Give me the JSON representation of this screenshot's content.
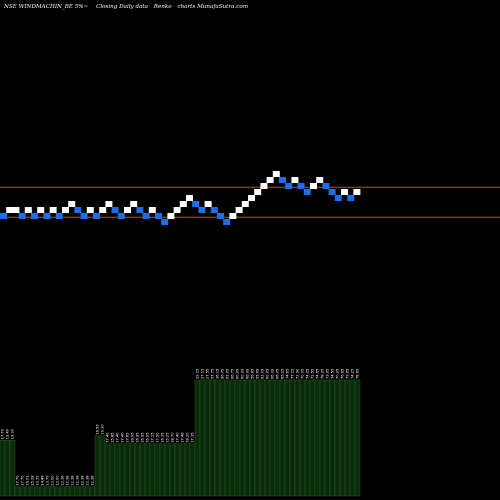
{
  "header": {
    "ticker": "NSE WINDMACHIN_BE 5%~",
    "desc": "Closing Daily data",
    "chart_kind": "Renko",
    "site": "charts MunafaSutra.com"
  },
  "colors": {
    "background": "#000000",
    "brick_up": "#ffffff",
    "brick_down": "#1e6fe6",
    "guide_line": "#a0581a",
    "volume_fill": "#0a2a0a",
    "volume_edge": "#2a6a2a"
  },
  "chart_data": {
    "type": "renko",
    "bricks": [
      {
        "dir": "down",
        "level": 0
      },
      {
        "dir": "up",
        "level": 1
      },
      {
        "dir": "up",
        "level": 1
      },
      {
        "dir": "down",
        "level": 0
      },
      {
        "dir": "up",
        "level": 1
      },
      {
        "dir": "down",
        "level": 0
      },
      {
        "dir": "up",
        "level": 1
      },
      {
        "dir": "down",
        "level": 0
      },
      {
        "dir": "up",
        "level": 1
      },
      {
        "dir": "down",
        "level": 0
      },
      {
        "dir": "up",
        "level": 1
      },
      {
        "dir": "up",
        "level": 2
      },
      {
        "dir": "down",
        "level": 1
      },
      {
        "dir": "down",
        "level": 0
      },
      {
        "dir": "up",
        "level": 1
      },
      {
        "dir": "down",
        "level": 0
      },
      {
        "dir": "up",
        "level": 1
      },
      {
        "dir": "up",
        "level": 2
      },
      {
        "dir": "down",
        "level": 1
      },
      {
        "dir": "down",
        "level": 0
      },
      {
        "dir": "up",
        "level": 1
      },
      {
        "dir": "up",
        "level": 2
      },
      {
        "dir": "down",
        "level": 1
      },
      {
        "dir": "down",
        "level": 0
      },
      {
        "dir": "up",
        "level": 1
      },
      {
        "dir": "down",
        "level": 0
      },
      {
        "dir": "down",
        "level": -1
      },
      {
        "dir": "up",
        "level": 0
      },
      {
        "dir": "up",
        "level": 1
      },
      {
        "dir": "up",
        "level": 2
      },
      {
        "dir": "up",
        "level": 3
      },
      {
        "dir": "down",
        "level": 2
      },
      {
        "dir": "down",
        "level": 1
      },
      {
        "dir": "up",
        "level": 2
      },
      {
        "dir": "down",
        "level": 1
      },
      {
        "dir": "down",
        "level": 0
      },
      {
        "dir": "down",
        "level": -1
      },
      {
        "dir": "up",
        "level": 0
      },
      {
        "dir": "up",
        "level": 1
      },
      {
        "dir": "up",
        "level": 2
      },
      {
        "dir": "up",
        "level": 3
      },
      {
        "dir": "up",
        "level": 4
      },
      {
        "dir": "up",
        "level": 5
      },
      {
        "dir": "up",
        "level": 6
      },
      {
        "dir": "up",
        "level": 7
      },
      {
        "dir": "down",
        "level": 6
      },
      {
        "dir": "down",
        "level": 5
      },
      {
        "dir": "up",
        "level": 6
      },
      {
        "dir": "down",
        "level": 5
      },
      {
        "dir": "down",
        "level": 4
      },
      {
        "dir": "up",
        "level": 5
      },
      {
        "dir": "up",
        "level": 6
      },
      {
        "dir": "down",
        "level": 5
      },
      {
        "dir": "down",
        "level": 4
      },
      {
        "dir": "down",
        "level": 3
      },
      {
        "dir": "up",
        "level": 4
      },
      {
        "dir": "down",
        "level": 3
      },
      {
        "dir": "up",
        "level": 4
      }
    ],
    "guide_levels": [
      4.8,
      -0.2
    ],
    "volume": [
      {
        "v": 0.48,
        "label": "17.70"
      },
      {
        "v": 0.48,
        "label": "19.49"
      },
      {
        "v": 0.48,
        "label": "19.30"
      },
      {
        "v": 0.08,
        "label": "17.70"
      },
      {
        "v": 0.08,
        "label": "17.70"
      },
      {
        "v": 0.08,
        "label": "16.01"
      },
      {
        "v": 0.08,
        "label": "15.28"
      },
      {
        "v": 0.08,
        "label": "13.79"
      },
      {
        "v": 0.08,
        "label": "14.48"
      },
      {
        "v": 0.08,
        "label": "13.79"
      },
      {
        "v": 0.08,
        "label": "13.00"
      },
      {
        "v": 0.08,
        "label": "13.00"
      },
      {
        "v": 0.08,
        "label": "12.38"
      },
      {
        "v": 0.08,
        "label": "12.38"
      },
      {
        "v": 0.08,
        "label": "12.38"
      },
      {
        "v": 0.08,
        "label": "12.38"
      },
      {
        "v": 0.08,
        "label": "12.38"
      },
      {
        "v": 0.08,
        "label": "12.38"
      },
      {
        "v": 0.08,
        "label": "12.38"
      },
      {
        "v": 0.52,
        "label": "16.55"
      },
      {
        "v": 0.52,
        "label": "19.30"
      },
      {
        "v": 0.45,
        "label": "17.40"
      },
      {
        "v": 0.45,
        "label": "15.85"
      },
      {
        "v": 0.45,
        "label": "17.40"
      },
      {
        "v": 0.45,
        "label": "17.40"
      },
      {
        "v": 0.45,
        "label": "17.85"
      },
      {
        "v": 0.45,
        "label": "18.95"
      },
      {
        "v": 0.45,
        "label": "16.95"
      },
      {
        "v": 0.45,
        "label": "16.95"
      },
      {
        "v": 0.45,
        "label": "16.95"
      },
      {
        "v": 0.45,
        "label": "17.15"
      },
      {
        "v": 0.45,
        "label": "17.50"
      },
      {
        "v": 0.45,
        "label": "16.35"
      },
      {
        "v": 0.45,
        "label": "15.25"
      },
      {
        "v": 0.45,
        "label": "18.70"
      },
      {
        "v": 0.45,
        "label": "17.40"
      },
      {
        "v": 0.45,
        "label": "17.48"
      },
      {
        "v": 0.45,
        "label": "18.20"
      },
      {
        "v": 0.45,
        "label": "17.35"
      },
      {
        "v": 1.0,
        "label": "29.15"
      },
      {
        "v": 1.0,
        "label": "27.15"
      },
      {
        "v": 1.0,
        "label": "27.55"
      },
      {
        "v": 1.0,
        "label": "27.75"
      },
      {
        "v": 1.0,
        "label": "36.15"
      },
      {
        "v": 1.0,
        "label": "66.75"
      },
      {
        "v": 1.0,
        "label": "63.05"
      },
      {
        "v": 1.0,
        "label": "66.75"
      },
      {
        "v": 1.0,
        "label": "60.09"
      },
      {
        "v": 1.0,
        "label": "60.09"
      },
      {
        "v": 1.0,
        "label": "66.09"
      },
      {
        "v": 1.0,
        "label": "56.65"
      },
      {
        "v": 1.0,
        "label": "55.65"
      },
      {
        "v": 1.0,
        "label": "62.05"
      },
      {
        "v": 1.0,
        "label": "60.05"
      },
      {
        "v": 1.0,
        "label": "66.09"
      },
      {
        "v": 1.0,
        "label": "66.05"
      },
      {
        "v": 1.0,
        "label": "65.25"
      },
      {
        "v": 1.0,
        "label": "74.65"
      },
      {
        "v": 1.0,
        "label": "77.15"
      },
      {
        "v": 1.0,
        "label": "72.90"
      },
      {
        "v": 1.0,
        "label": "70.05"
      },
      {
        "v": 1.0,
        "label": "74.05"
      },
      {
        "v": 1.0,
        "label": "72.55"
      },
      {
        "v": 1.0,
        "label": "74.65"
      },
      {
        "v": 1.0,
        "label": "78.05"
      },
      {
        "v": 1.0,
        "label": "73.05"
      },
      {
        "v": 1.0,
        "label": "74.55"
      },
      {
        "v": 1.0,
        "label": "70.05"
      },
      {
        "v": 1.0,
        "label": "76.65"
      },
      {
        "v": 1.0,
        "label": "79.65"
      },
      {
        "v": 1.0,
        "label": "74.25"
      },
      {
        "v": 1.0,
        "label": "78.65"
      }
    ]
  }
}
